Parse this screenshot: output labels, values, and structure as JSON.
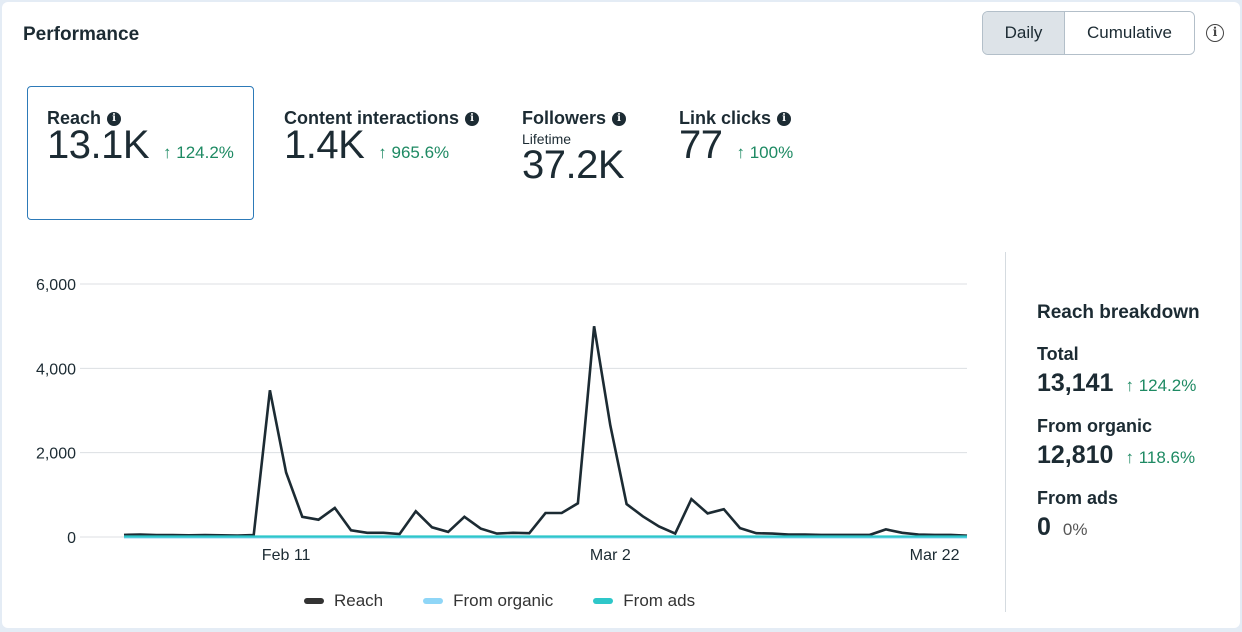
{
  "header": {
    "title": "Performance",
    "toggle": {
      "options": [
        "Daily",
        "Cumulative"
      ],
      "selected": "Daily"
    }
  },
  "metrics": [
    {
      "label": "Reach",
      "value": "13.1K",
      "change": "↑ 124.2%",
      "selected": true
    },
    {
      "label": "Content interactions",
      "value": "1.4K",
      "change": "↑ 965.6%"
    },
    {
      "label": "Followers",
      "sublabel": "Lifetime",
      "value": "37.2K"
    },
    {
      "label": "Link clicks",
      "value": "77",
      "change": "↑ 100%"
    }
  ],
  "breakdown": {
    "title": "Reach breakdown",
    "items": [
      {
        "label": "Total",
        "value": "13,141",
        "change": "↑ 124.2%"
      },
      {
        "label": "From organic",
        "value": "12,810",
        "change": "↑ 118.6%"
      },
      {
        "label": "From ads",
        "value": "0",
        "change": "0%"
      }
    ]
  },
  "colors": {
    "reach": "#1c2b33",
    "organic": "#8fd6f7",
    "ads": "#2ec7c9",
    "positive": "#1e8a63",
    "selected_border": "#2d7ab8"
  },
  "chart_data": {
    "type": "line",
    "title": "",
    "xlabel": "",
    "ylabel": "",
    "ylim": [
      0,
      6000
    ],
    "yticks": [
      0,
      2000,
      4000,
      6000
    ],
    "ytick_labels": [
      "0",
      "2,000",
      "4,000",
      "6,000"
    ],
    "xtick_labels": [
      {
        "index": 10,
        "label": "Feb 11"
      },
      {
        "index": 30,
        "label": "Mar 2"
      },
      {
        "index": 50,
        "label": "Mar 22"
      }
    ],
    "grid": true,
    "legend_position": "bottom",
    "series": [
      {
        "name": "Reach",
        "color": "#1c2b33",
        "values": [
          50,
          60,
          45,
          45,
          40,
          45,
          40,
          35,
          45,
          3480,
          1530,
          480,
          410,
          690,
          160,
          100,
          100,
          70,
          610,
          230,
          120,
          480,
          200,
          80,
          100,
          90,
          570,
          570,
          800,
          5000,
          2650,
          780,
          490,
          250,
          80,
          900,
          560,
          660,
          210,
          90,
          80,
          60,
          60,
          50,
          50,
          50,
          50,
          180,
          100,
          60,
          50,
          50,
          30
        ]
      },
      {
        "name": "From organic",
        "color": "#8fd6f7",
        "values": [
          0,
          0,
          0,
          0,
          0,
          0,
          0,
          0,
          0,
          0,
          0,
          0,
          0,
          0,
          0,
          0,
          0,
          0,
          0,
          0,
          0,
          0,
          0,
          0,
          0,
          0,
          0,
          0,
          0,
          0,
          0,
          0,
          0,
          0,
          0,
          0,
          0,
          0,
          0,
          0,
          0,
          0,
          0,
          0,
          0,
          0,
          0,
          0,
          0,
          0,
          0,
          0,
          0
        ]
      },
      {
        "name": "From ads",
        "color": "#2ec7c9",
        "values": [
          0,
          0,
          0,
          0,
          0,
          0,
          0,
          0,
          0,
          0,
          0,
          0,
          0,
          0,
          0,
          0,
          0,
          0,
          0,
          0,
          0,
          0,
          0,
          0,
          0,
          0,
          0,
          0,
          0,
          0,
          0,
          0,
          0,
          0,
          0,
          0,
          0,
          0,
          0,
          0,
          0,
          0,
          0,
          0,
          0,
          0,
          0,
          0,
          0,
          0,
          0,
          0,
          0
        ]
      }
    ]
  }
}
